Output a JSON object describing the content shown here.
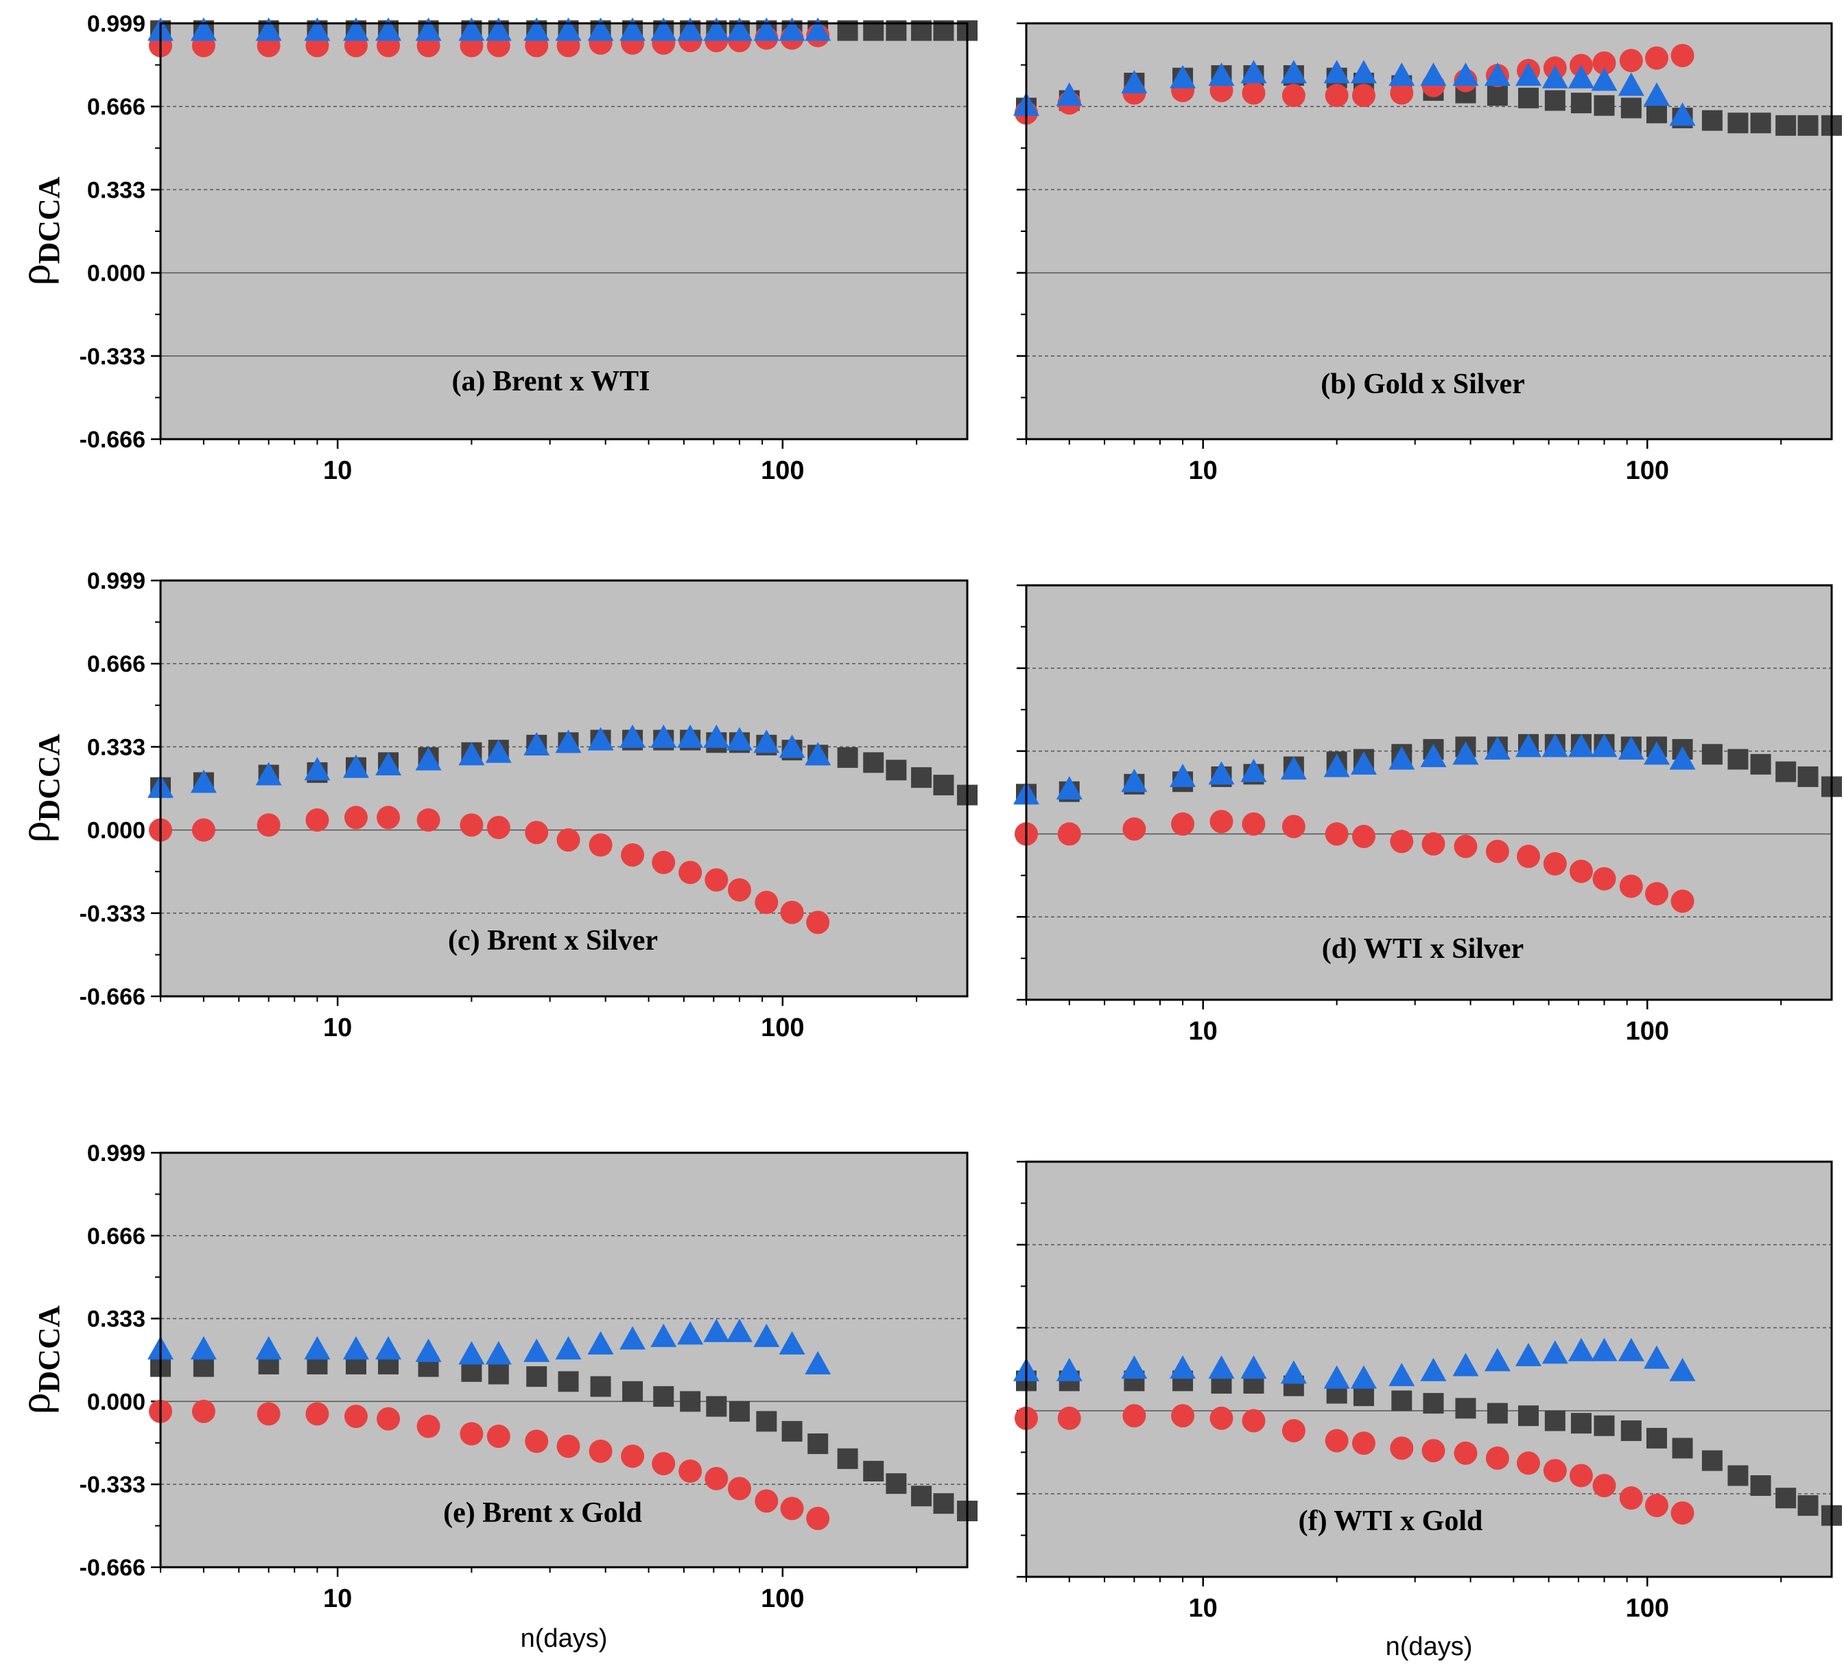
{
  "chart_data": [
    {
      "type": "scatter",
      "title": "(a)  Brent x WTI",
      "ylabel": "DCCA",
      "xlabel": "",
      "xscale": "log",
      "xlim": [
        4,
        260
      ],
      "ylim": [
        -0.666,
        0.999
      ],
      "yticks": [
        "0.999",
        "0.666",
        "0.333",
        "0.000",
        "-0.333",
        "-0.666"
      ],
      "xticks": [
        "10",
        "100"
      ],
      "grid": true,
      "x": [
        4,
        5,
        7,
        9,
        11,
        13,
        16,
        20,
        23,
        28,
        33,
        39,
        46,
        54,
        62,
        71,
        80,
        92,
        105,
        120,
        140,
        160,
        180,
        205,
        230,
        260
      ],
      "series": [
        {
          "marker": "square",
          "color": "#404040",
          "values": [
            0.97,
            0.97,
            0.97,
            0.97,
            0.97,
            0.97,
            0.97,
            0.97,
            0.97,
            0.97,
            0.97,
            0.97,
            0.97,
            0.97,
            0.97,
            0.97,
            0.97,
            0.97,
            0.97,
            0.97,
            0.97,
            0.97,
            0.97,
            0.97,
            0.97,
            0.97
          ]
        },
        {
          "marker": "circle",
          "color": "#e84040",
          "values": [
            0.91,
            0.91,
            0.91,
            0.91,
            0.91,
            0.91,
            0.91,
            0.91,
            0.91,
            0.91,
            0.91,
            0.92,
            0.92,
            0.92,
            0.93,
            0.93,
            0.93,
            0.94,
            0.94,
            0.95
          ]
        },
        {
          "marker": "triangle",
          "color": "#1f6fe0",
          "values": [
            0.97,
            0.97,
            0.97,
            0.97,
            0.97,
            0.97,
            0.97,
            0.97,
            0.97,
            0.97,
            0.97,
            0.97,
            0.97,
            0.97,
            0.97,
            0.97,
            0.97,
            0.97,
            0.97,
            0.97
          ]
        }
      ]
    },
    {
      "type": "scatter",
      "title": "(b)  Gold x Silver",
      "ylabel": "",
      "xlabel": "",
      "xscale": "log",
      "xlim": [
        4,
        260
      ],
      "ylim": [
        -0.666,
        0.999
      ],
      "yticks": [],
      "xticks": [
        "10",
        "100"
      ],
      "grid": true,
      "x": [
        4,
        5,
        7,
        9,
        11,
        13,
        16,
        20,
        23,
        28,
        33,
        39,
        46,
        54,
        62,
        71,
        80,
        92,
        105,
        120,
        140,
        160,
        180,
        205,
        230,
        260
      ],
      "series": [
        {
          "marker": "square",
          "color": "#404040",
          "values": [
            0.66,
            0.69,
            0.76,
            0.78,
            0.79,
            0.79,
            0.79,
            0.78,
            0.76,
            0.75,
            0.73,
            0.72,
            0.71,
            0.7,
            0.69,
            0.68,
            0.67,
            0.66,
            0.64,
            0.62,
            0.61,
            0.6,
            0.6,
            0.59,
            0.59,
            0.59
          ]
        },
        {
          "marker": "circle",
          "color": "#e84040",
          "values": [
            0.64,
            0.68,
            0.72,
            0.73,
            0.73,
            0.72,
            0.71,
            0.71,
            0.71,
            0.72,
            0.75,
            0.77,
            0.79,
            0.81,
            0.82,
            0.83,
            0.84,
            0.85,
            0.86,
            0.87
          ]
        },
        {
          "marker": "triangle",
          "color": "#1f6fe0",
          "values": [
            0.67,
            0.71,
            0.76,
            0.78,
            0.79,
            0.8,
            0.8,
            0.8,
            0.8,
            0.79,
            0.79,
            0.79,
            0.79,
            0.79,
            0.78,
            0.78,
            0.77,
            0.75,
            0.71,
            0.63
          ]
        }
      ]
    },
    {
      "type": "scatter",
      "title": "(c)  Brent x Silver",
      "ylabel": "DCCA",
      "xlabel": "",
      "xscale": "log",
      "xlim": [
        4,
        260
      ],
      "ylim": [
        -0.666,
        0.999
      ],
      "yticks": [
        "0.999",
        "0.666",
        "0.333",
        "0.000",
        "-0.333",
        "-0.666"
      ],
      "xticks": [
        "10",
        "100"
      ],
      "grid": true,
      "x": [
        4,
        5,
        7,
        9,
        11,
        13,
        16,
        20,
        23,
        28,
        33,
        39,
        46,
        54,
        62,
        71,
        80,
        92,
        105,
        120,
        140,
        160,
        180,
        205,
        230,
        260
      ],
      "series": [
        {
          "marker": "square",
          "color": "#404040",
          "values": [
            0.17,
            0.19,
            0.22,
            0.23,
            0.25,
            0.27,
            0.29,
            0.31,
            0.32,
            0.34,
            0.35,
            0.36,
            0.36,
            0.36,
            0.36,
            0.35,
            0.35,
            0.34,
            0.32,
            0.3,
            0.29,
            0.27,
            0.24,
            0.21,
            0.18,
            0.14
          ]
        },
        {
          "marker": "circle",
          "color": "#e84040",
          "values": [
            0.0,
            0.0,
            0.02,
            0.04,
            0.05,
            0.05,
            0.04,
            0.02,
            0.01,
            -0.01,
            -0.04,
            -0.06,
            -0.1,
            -0.13,
            -0.17,
            -0.2,
            -0.24,
            -0.29,
            -0.33,
            -0.37
          ]
        },
        {
          "marker": "triangle",
          "color": "#1f6fe0",
          "values": [
            0.17,
            0.19,
            0.22,
            0.24,
            0.25,
            0.26,
            0.28,
            0.3,
            0.31,
            0.34,
            0.35,
            0.36,
            0.37,
            0.37,
            0.37,
            0.37,
            0.36,
            0.35,
            0.33,
            0.3
          ]
        }
      ]
    },
    {
      "type": "scatter",
      "title": "(d)  WTI x Silver",
      "ylabel": "",
      "xlabel": "",
      "xscale": "log",
      "xlim": [
        4,
        260
      ],
      "ylim": [
        -0.666,
        0.999
      ],
      "yticks": [],
      "xticks": [
        "10",
        "100"
      ],
      "grid": true,
      "x": [
        4,
        5,
        7,
        9,
        11,
        13,
        16,
        20,
        23,
        28,
        33,
        39,
        46,
        54,
        62,
        71,
        80,
        92,
        105,
        120,
        140,
        160,
        180,
        205,
        230,
        260
      ],
      "series": [
        {
          "marker": "square",
          "color": "#404040",
          "values": [
            0.16,
            0.17,
            0.2,
            0.21,
            0.23,
            0.24,
            0.27,
            0.29,
            0.3,
            0.32,
            0.34,
            0.35,
            0.35,
            0.36,
            0.36,
            0.36,
            0.36,
            0.35,
            0.35,
            0.34,
            0.32,
            0.3,
            0.28,
            0.25,
            0.23,
            0.19
          ]
        },
        {
          "marker": "circle",
          "color": "#e84040",
          "values": [
            0.0,
            0.0,
            0.02,
            0.04,
            0.05,
            0.04,
            0.03,
            0.0,
            -0.01,
            -0.03,
            -0.04,
            -0.05,
            -0.07,
            -0.09,
            -0.12,
            -0.15,
            -0.18,
            -0.21,
            -0.24,
            -0.27
          ]
        },
        {
          "marker": "triangle",
          "color": "#1f6fe0",
          "values": [
            0.16,
            0.18,
            0.21,
            0.23,
            0.24,
            0.25,
            0.26,
            0.27,
            0.28,
            0.3,
            0.31,
            0.32,
            0.34,
            0.35,
            0.35,
            0.35,
            0.35,
            0.34,
            0.32,
            0.3
          ]
        }
      ]
    },
    {
      "type": "scatter",
      "title": "(e)  Brent x Gold",
      "ylabel": "DCCA",
      "xlabel": "n(days)",
      "xscale": "log",
      "xlim": [
        4,
        260
      ],
      "ylim": [
        -0.666,
        0.999
      ],
      "yticks": [
        "0.999",
        "0.666",
        "0.333",
        "0.000",
        "-0.333",
        "-0.666"
      ],
      "xticks": [
        "10",
        "100"
      ],
      "grid": true,
      "x": [
        4,
        5,
        7,
        9,
        11,
        13,
        16,
        20,
        23,
        28,
        33,
        39,
        46,
        54,
        62,
        71,
        80,
        92,
        105,
        120,
        140,
        160,
        180,
        205,
        230,
        260
      ],
      "series": [
        {
          "marker": "square",
          "color": "#404040",
          "values": [
            0.14,
            0.14,
            0.15,
            0.15,
            0.15,
            0.15,
            0.14,
            0.12,
            0.11,
            0.1,
            0.08,
            0.06,
            0.04,
            0.02,
            0.0,
            -0.02,
            -0.04,
            -0.08,
            -0.12,
            -0.17,
            -0.23,
            -0.28,
            -0.33,
            -0.38,
            -0.41,
            -0.44
          ]
        },
        {
          "marker": "circle",
          "color": "#e84040",
          "values": [
            -0.04,
            -0.04,
            -0.05,
            -0.05,
            -0.06,
            -0.07,
            -0.1,
            -0.13,
            -0.14,
            -0.16,
            -0.18,
            -0.2,
            -0.22,
            -0.25,
            -0.28,
            -0.31,
            -0.35,
            -0.4,
            -0.43,
            -0.47
          ]
        },
        {
          "marker": "triangle",
          "color": "#1f6fe0",
          "values": [
            0.21,
            0.21,
            0.21,
            0.21,
            0.21,
            0.21,
            0.2,
            0.19,
            0.19,
            0.2,
            0.21,
            0.23,
            0.25,
            0.26,
            0.27,
            0.28,
            0.28,
            0.26,
            0.23,
            0.15
          ]
        }
      ]
    },
    {
      "type": "scatter",
      "title": "(f)  WTI x Gold",
      "ylabel": "",
      "xlabel": "n(days)",
      "xscale": "log",
      "xlim": [
        4,
        260
      ],
      "ylim": [
        -0.666,
        0.999
      ],
      "yticks": [],
      "xticks": [
        "10",
        "100"
      ],
      "grid": true,
      "x": [
        4,
        5,
        7,
        9,
        11,
        13,
        16,
        20,
        23,
        28,
        33,
        39,
        46,
        54,
        62,
        71,
        80,
        92,
        105,
        120,
        140,
        160,
        180,
        205,
        230,
        260
      ],
      "series": [
        {
          "marker": "square",
          "color": "#404040",
          "values": [
            0.12,
            0.12,
            0.12,
            0.12,
            0.11,
            0.11,
            0.1,
            0.07,
            0.06,
            0.04,
            0.03,
            0.01,
            -0.01,
            -0.02,
            -0.04,
            -0.05,
            -0.06,
            -0.08,
            -0.11,
            -0.15,
            -0.2,
            -0.26,
            -0.3,
            -0.35,
            -0.38,
            -0.42
          ]
        },
        {
          "marker": "circle",
          "color": "#e84040",
          "values": [
            -0.03,
            -0.03,
            -0.02,
            -0.02,
            -0.03,
            -0.04,
            -0.08,
            -0.12,
            -0.13,
            -0.15,
            -0.16,
            -0.17,
            -0.19,
            -0.21,
            -0.24,
            -0.26,
            -0.3,
            -0.35,
            -0.38,
            -0.41
          ]
        },
        {
          "marker": "triangle",
          "color": "#1f6fe0",
          "values": [
            0.16,
            0.16,
            0.17,
            0.17,
            0.17,
            0.17,
            0.15,
            0.13,
            0.13,
            0.14,
            0.16,
            0.18,
            0.2,
            0.22,
            0.23,
            0.24,
            0.24,
            0.24,
            0.21,
            0.16
          ]
        }
      ]
    }
  ],
  "y_axis_symbol": "ρ"
}
